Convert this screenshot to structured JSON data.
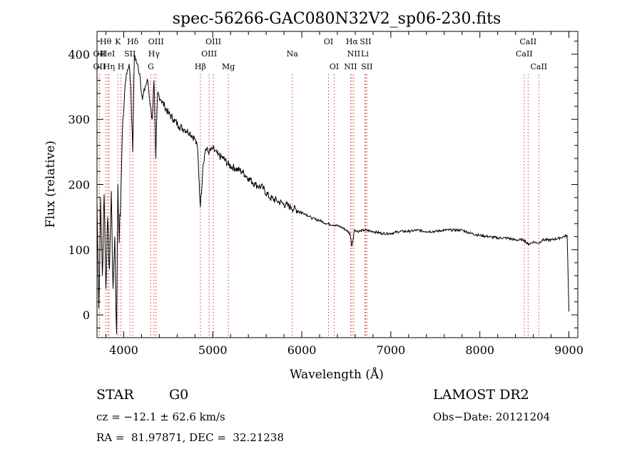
{
  "chart_data": {
    "type": "line",
    "title": "spec-56266-GAC080N32V2_sp06-230.fits",
    "xlabel": "Wavelength (Å)",
    "ylabel": "Flux (relative)",
    "xlim": [
      3700,
      9100
    ],
    "ylim": [
      -35,
      435
    ],
    "x_ticks": [
      4000,
      5000,
      6000,
      7000,
      8000,
      9000
    ],
    "y_ticks": [
      0,
      100,
      200,
      300,
      400
    ],
    "grid": false,
    "legend": "none",
    "series": [
      {
        "x": [
          3700,
          3720,
          3740,
          3760,
          3780,
          3800,
          3820,
          3840,
          3860,
          3880,
          3900,
          3920,
          3935,
          3950,
          3968,
          3990,
          4010,
          4030,
          4060,
          4080,
          4101,
          4120,
          4150,
          4180,
          4210,
          4240,
          4270,
          4300,
          4320,
          4340,
          4360,
          4380,
          4420,
          4460,
          4500,
          4560,
          4620,
          4680,
          4740,
          4800,
          4830,
          4861,
          4890,
          4920,
          4960,
          5000,
          5060,
          5120,
          5180,
          5250,
          5330,
          5400,
          5480,
          5560,
          5640,
          5720,
          5800,
          5880,
          5960,
          6040,
          6120,
          6200,
          6280,
          6360,
          6440,
          6500,
          6540,
          6563,
          6590,
          6640,
          6700,
          6800,
          6900,
          7000,
          7100,
          7200,
          7300,
          7400,
          7500,
          7600,
          7700,
          7800,
          7900,
          8000,
          8100,
          8200,
          8300,
          8400,
          8498,
          8542,
          8600,
          8662,
          8700,
          8800,
          8900,
          8980,
          9000
        ],
        "y": [
          170,
          10,
          180,
          60,
          185,
          40,
          150,
          70,
          190,
          40,
          120,
          -30,
          200,
          110,
          190,
          300,
          340,
          370,
          385,
          350,
          250,
          400,
          385,
          370,
          330,
          350,
          360,
          320,
          300,
          360,
          240,
          340,
          330,
          320,
          310,
          300,
          290,
          285,
          280,
          270,
          255,
          165,
          230,
          255,
          250,
          255,
          245,
          240,
          230,
          225,
          220,
          210,
          200,
          195,
          180,
          175,
          170,
          165,
          160,
          155,
          148,
          145,
          140,
          138,
          135,
          130,
          125,
          105,
          130,
          128,
          130,
          128,
          125,
          125,
          128,
          128,
          130,
          128,
          128,
          130,
          130,
          130,
          125,
          122,
          120,
          118,
          118,
          115,
          115,
          108,
          112,
          110,
          115,
          115,
          118,
          122,
          5
        ]
      }
    ],
    "line_markers": [
      {
        "label": "Hθ",
        "x": 3797,
        "row": 1
      },
      {
        "label": "OII",
        "x": 3727,
        "row": 2
      },
      {
        "label": "OII",
        "x": 3727,
        "row": 3
      },
      {
        "label": "K",
        "x": 3934,
        "row": 1
      },
      {
        "label": "HeI",
        "x": 3820,
        "row": 2
      },
      {
        "label": "Hη",
        "x": 3835,
        "row": 3
      },
      {
        "label": "SII",
        "x": 4070,
        "row": 2
      },
      {
        "label": "H",
        "x": 3969,
        "row": 3
      },
      {
        "label": "Hδ",
        "x": 4102,
        "row": 1
      },
      {
        "label": "OIII",
        "x": 4363,
        "row": 1
      },
      {
        "label": "Hγ",
        "x": 4340,
        "row": 2
      },
      {
        "label": "G",
        "x": 4304,
        "row": 3
      },
      {
        "label": "Hβ",
        "x": 4861,
        "row": 3
      },
      {
        "label": "OIII",
        "x": 5007,
        "row": 1
      },
      {
        "label": "OIII",
        "x": 4959,
        "row": 2
      },
      {
        "label": "Mg",
        "x": 5175,
        "row": 3
      },
      {
        "label": "Na",
        "x": 5893,
        "row": 2
      },
      {
        "label": "OI",
        "x": 6300,
        "row": 1
      },
      {
        "label": "OI",
        "x": 6364,
        "row": 3
      },
      {
        "label": "Hα",
        "x": 6563,
        "row": 1
      },
      {
        "label": "SII",
        "x": 6716,
        "row": 1
      },
      {
        "label": "NII",
        "x": 6584,
        "row": 2
      },
      {
        "label": "Li",
        "x": 6708,
        "row": 2
      },
      {
        "label": "NII",
        "x": 6548,
        "row": 3
      },
      {
        "label": "SII",
        "x": 6731,
        "row": 3
      },
      {
        "label": "CaII",
        "x": 8542,
        "row": 1
      },
      {
        "label": "CaII",
        "x": 8498,
        "row": 2
      },
      {
        "label": "CaII",
        "x": 8662,
        "row": 3
      }
    ]
  },
  "info": {
    "class_label": "STAR",
    "subclass": "G0",
    "survey": "LAMOST DR2",
    "cz": "cz = −12.1 ± 62.6 km/s",
    "obs_date": "Obs−Date: 20121204",
    "coords": "RA =  81.97871, DEC =  32.21238"
  }
}
